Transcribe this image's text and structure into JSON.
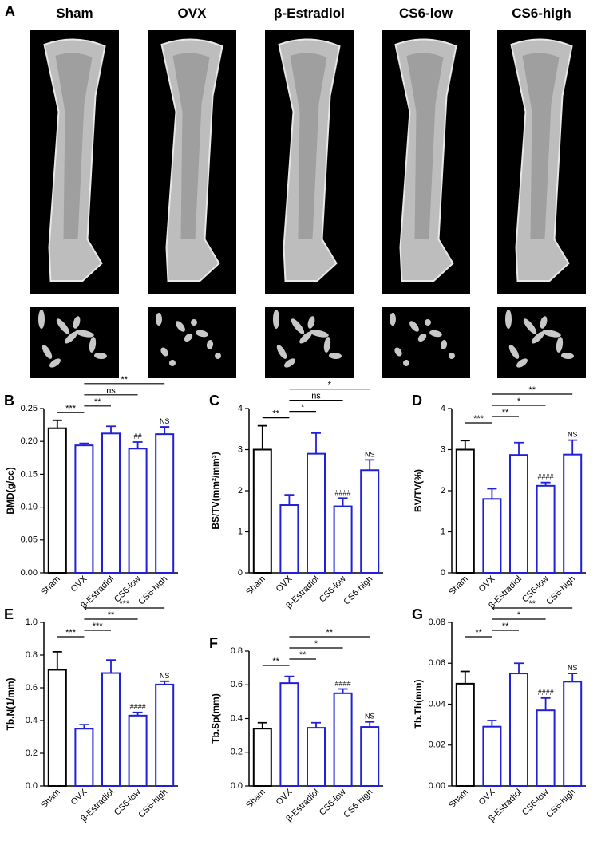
{
  "panel_a": {
    "label": "A",
    "columns": [
      "Sham",
      "OVX",
      "β-Estradiol",
      "CS6-low",
      "CS6-high"
    ]
  },
  "chart_data": [
    {
      "type": "bar",
      "panel": "B",
      "ylabel": "BMD(g/cc)",
      "categories": [
        "Sham",
        "OVX",
        "β-Estradiol",
        "CS6-low",
        "CS6-high"
      ],
      "values": [
        0.22,
        0.194,
        0.212,
        0.189,
        0.211
      ],
      "errors": [
        0.012,
        0.003,
        0.011,
        0.01,
        0.011
      ],
      "colors": [
        "#000000",
        "#2020d8",
        "#2020d8",
        "#2020d8",
        "#2020d8"
      ],
      "bar_labels": [
        null,
        null,
        null,
        "##",
        "NS"
      ],
      "comparisons": [
        {
          "from": "Sham",
          "to": "OVX",
          "label": "***"
        },
        {
          "from": "OVX",
          "to": "β-Estradiol",
          "label": "**"
        },
        {
          "from": "OVX",
          "to": "CS6-low",
          "label": "ns"
        },
        {
          "from": "OVX",
          "to": "CS6-high",
          "label": "**"
        }
      ],
      "ylim": [
        0,
        0.25
      ],
      "yticks": [
        {
          "value": 0,
          "label": "0.00"
        },
        0.05,
        {
          "value": 0.1,
          "label": "0.10"
        },
        0.15,
        {
          "value": 0.2,
          "label": "0.20"
        },
        0.25
      ]
    },
    {
      "type": "bar",
      "panel": "C",
      "ylabel": "BS/TV(mm²/mm³)",
      "categories": [
        "Sham",
        "OVX",
        "β-Estradiol",
        "CS6-low",
        "CS6-high"
      ],
      "values": [
        3.0,
        1.65,
        2.9,
        1.62,
        2.5
      ],
      "errors": [
        0.58,
        0.25,
        0.5,
        0.2,
        0.25
      ],
      "colors": [
        "#000000",
        "#2020d8",
        "#2020d8",
        "#2020d8",
        "#2020d8"
      ],
      "bar_labels": [
        null,
        null,
        null,
        "####",
        "NS"
      ],
      "comparisons": [
        {
          "from": "Sham",
          "to": "OVX",
          "label": "**"
        },
        {
          "from": "OVX",
          "to": "β-Estradiol",
          "label": "*"
        },
        {
          "from": "OVX",
          "to": "CS6-low",
          "label": "ns"
        },
        {
          "from": "OVX",
          "to": "CS6-high",
          "label": "*"
        }
      ],
      "ylim": [
        0,
        4
      ],
      "yticks": [
        0,
        1,
        2,
        3,
        4
      ]
    },
    {
      "type": "bar",
      "panel": "D",
      "ylabel": "BV/TV(%)",
      "categories": [
        "Sham",
        "OVX",
        "β-Estradiol",
        "CS6-low",
        "CS6-high"
      ],
      "values": [
        3.0,
        1.8,
        2.87,
        2.12,
        2.88
      ],
      "errors": [
        0.22,
        0.25,
        0.3,
        0.08,
        0.35
      ],
      "colors": [
        "#000000",
        "#2020d8",
        "#2020d8",
        "#2020d8",
        "#2020d8"
      ],
      "bar_labels": [
        null,
        null,
        null,
        "####",
        "NS"
      ],
      "comparisons": [
        {
          "from": "Sham",
          "to": "OVX",
          "label": "***"
        },
        {
          "from": "OVX",
          "to": "β-Estradiol",
          "label": "**"
        },
        {
          "from": "OVX",
          "to": "CS6-low",
          "label": "*"
        },
        {
          "from": "OVX",
          "to": "CS6-high",
          "label": "**"
        }
      ],
      "ylim": [
        0,
        4
      ],
      "yticks": [
        0,
        1,
        2,
        3,
        4
      ]
    },
    {
      "type": "bar",
      "panel": "E",
      "ylabel": "Tb.N(1/mm)",
      "categories": [
        "Sham",
        "OVX",
        "β-Estradiol",
        "CS6-low",
        "CS6-high"
      ],
      "values": [
        0.71,
        0.35,
        0.69,
        0.43,
        0.62
      ],
      "errors": [
        0.11,
        0.025,
        0.08,
        0.02,
        0.02
      ],
      "colors": [
        "#000000",
        "#2020d8",
        "#2020d8",
        "#2020d8",
        "#2020d8"
      ],
      "bar_labels": [
        null,
        null,
        null,
        "####",
        "NS"
      ],
      "comparisons": [
        {
          "from": "Sham",
          "to": "OVX",
          "label": "***"
        },
        {
          "from": "OVX",
          "to": "β-Estradiol",
          "label": "***"
        },
        {
          "from": "OVX",
          "to": "CS6-low",
          "label": "**"
        },
        {
          "from": "OVX",
          "to": "CS6-high",
          "label": "***"
        }
      ],
      "ylim": [
        0,
        1
      ],
      "yticks": [
        {
          "value": 0,
          "label": "0.0"
        },
        0.2,
        0.4,
        0.6,
        0.8,
        {
          "value": 1,
          "label": "1.0"
        }
      ]
    },
    {
      "type": "bar",
      "panel": "F",
      "ylabel": "Tb.Sp(mm)",
      "categories": [
        "Sham",
        "OVX",
        "β-Estradiol",
        "CS6-low",
        "CS6-high"
      ],
      "values": [
        0.34,
        0.61,
        0.345,
        0.55,
        0.35
      ],
      "errors": [
        0.035,
        0.04,
        0.03,
        0.025,
        0.03
      ],
      "colors": [
        "#000000",
        "#2020d8",
        "#2020d8",
        "#2020d8",
        "#2020d8"
      ],
      "bar_labels": [
        null,
        null,
        null,
        "####",
        "NS"
      ],
      "comparisons": [
        {
          "from": "Sham",
          "to": "OVX",
          "label": "**"
        },
        {
          "from": "OVX",
          "to": "β-Estradiol",
          "label": "**"
        },
        {
          "from": "OVX",
          "to": "CS6-low",
          "label": "*"
        },
        {
          "from": "OVX",
          "to": "CS6-high",
          "label": "**"
        }
      ],
      "ylim": [
        0,
        0.8
      ],
      "yticks": [
        {
          "value": 0,
          "label": "0.0"
        },
        0.2,
        0.4,
        0.6,
        0.8
      ]
    },
    {
      "type": "bar",
      "panel": "G",
      "ylabel": "Tb.Th(mm)",
      "categories": [
        "Sham",
        "OVX",
        "β-Estradiol",
        "CS6-low",
        "CS6-high"
      ],
      "values": [
        0.05,
        0.029,
        0.055,
        0.037,
        0.051
      ],
      "errors": [
        0.006,
        0.003,
        0.005,
        0.006,
        0.004
      ],
      "colors": [
        "#000000",
        "#2020d8",
        "#2020d8",
        "#2020d8",
        "#2020d8"
      ],
      "bar_labels": [
        null,
        null,
        null,
        "####",
        "NS"
      ],
      "comparisons": [
        {
          "from": "Sham",
          "to": "OVX",
          "label": "**"
        },
        {
          "from": "OVX",
          "to": "β-Estradiol",
          "label": "**"
        },
        {
          "from": "OVX",
          "to": "CS6-low",
          "label": "*"
        },
        {
          "from": "OVX",
          "to": "CS6-high",
          "label": "**"
        }
      ],
      "ylim": [
        0,
        0.08
      ],
      "yticks": [
        {
          "value": 0,
          "label": "0.00"
        },
        0.02,
        0.04,
        0.06,
        0.08
      ]
    }
  ]
}
